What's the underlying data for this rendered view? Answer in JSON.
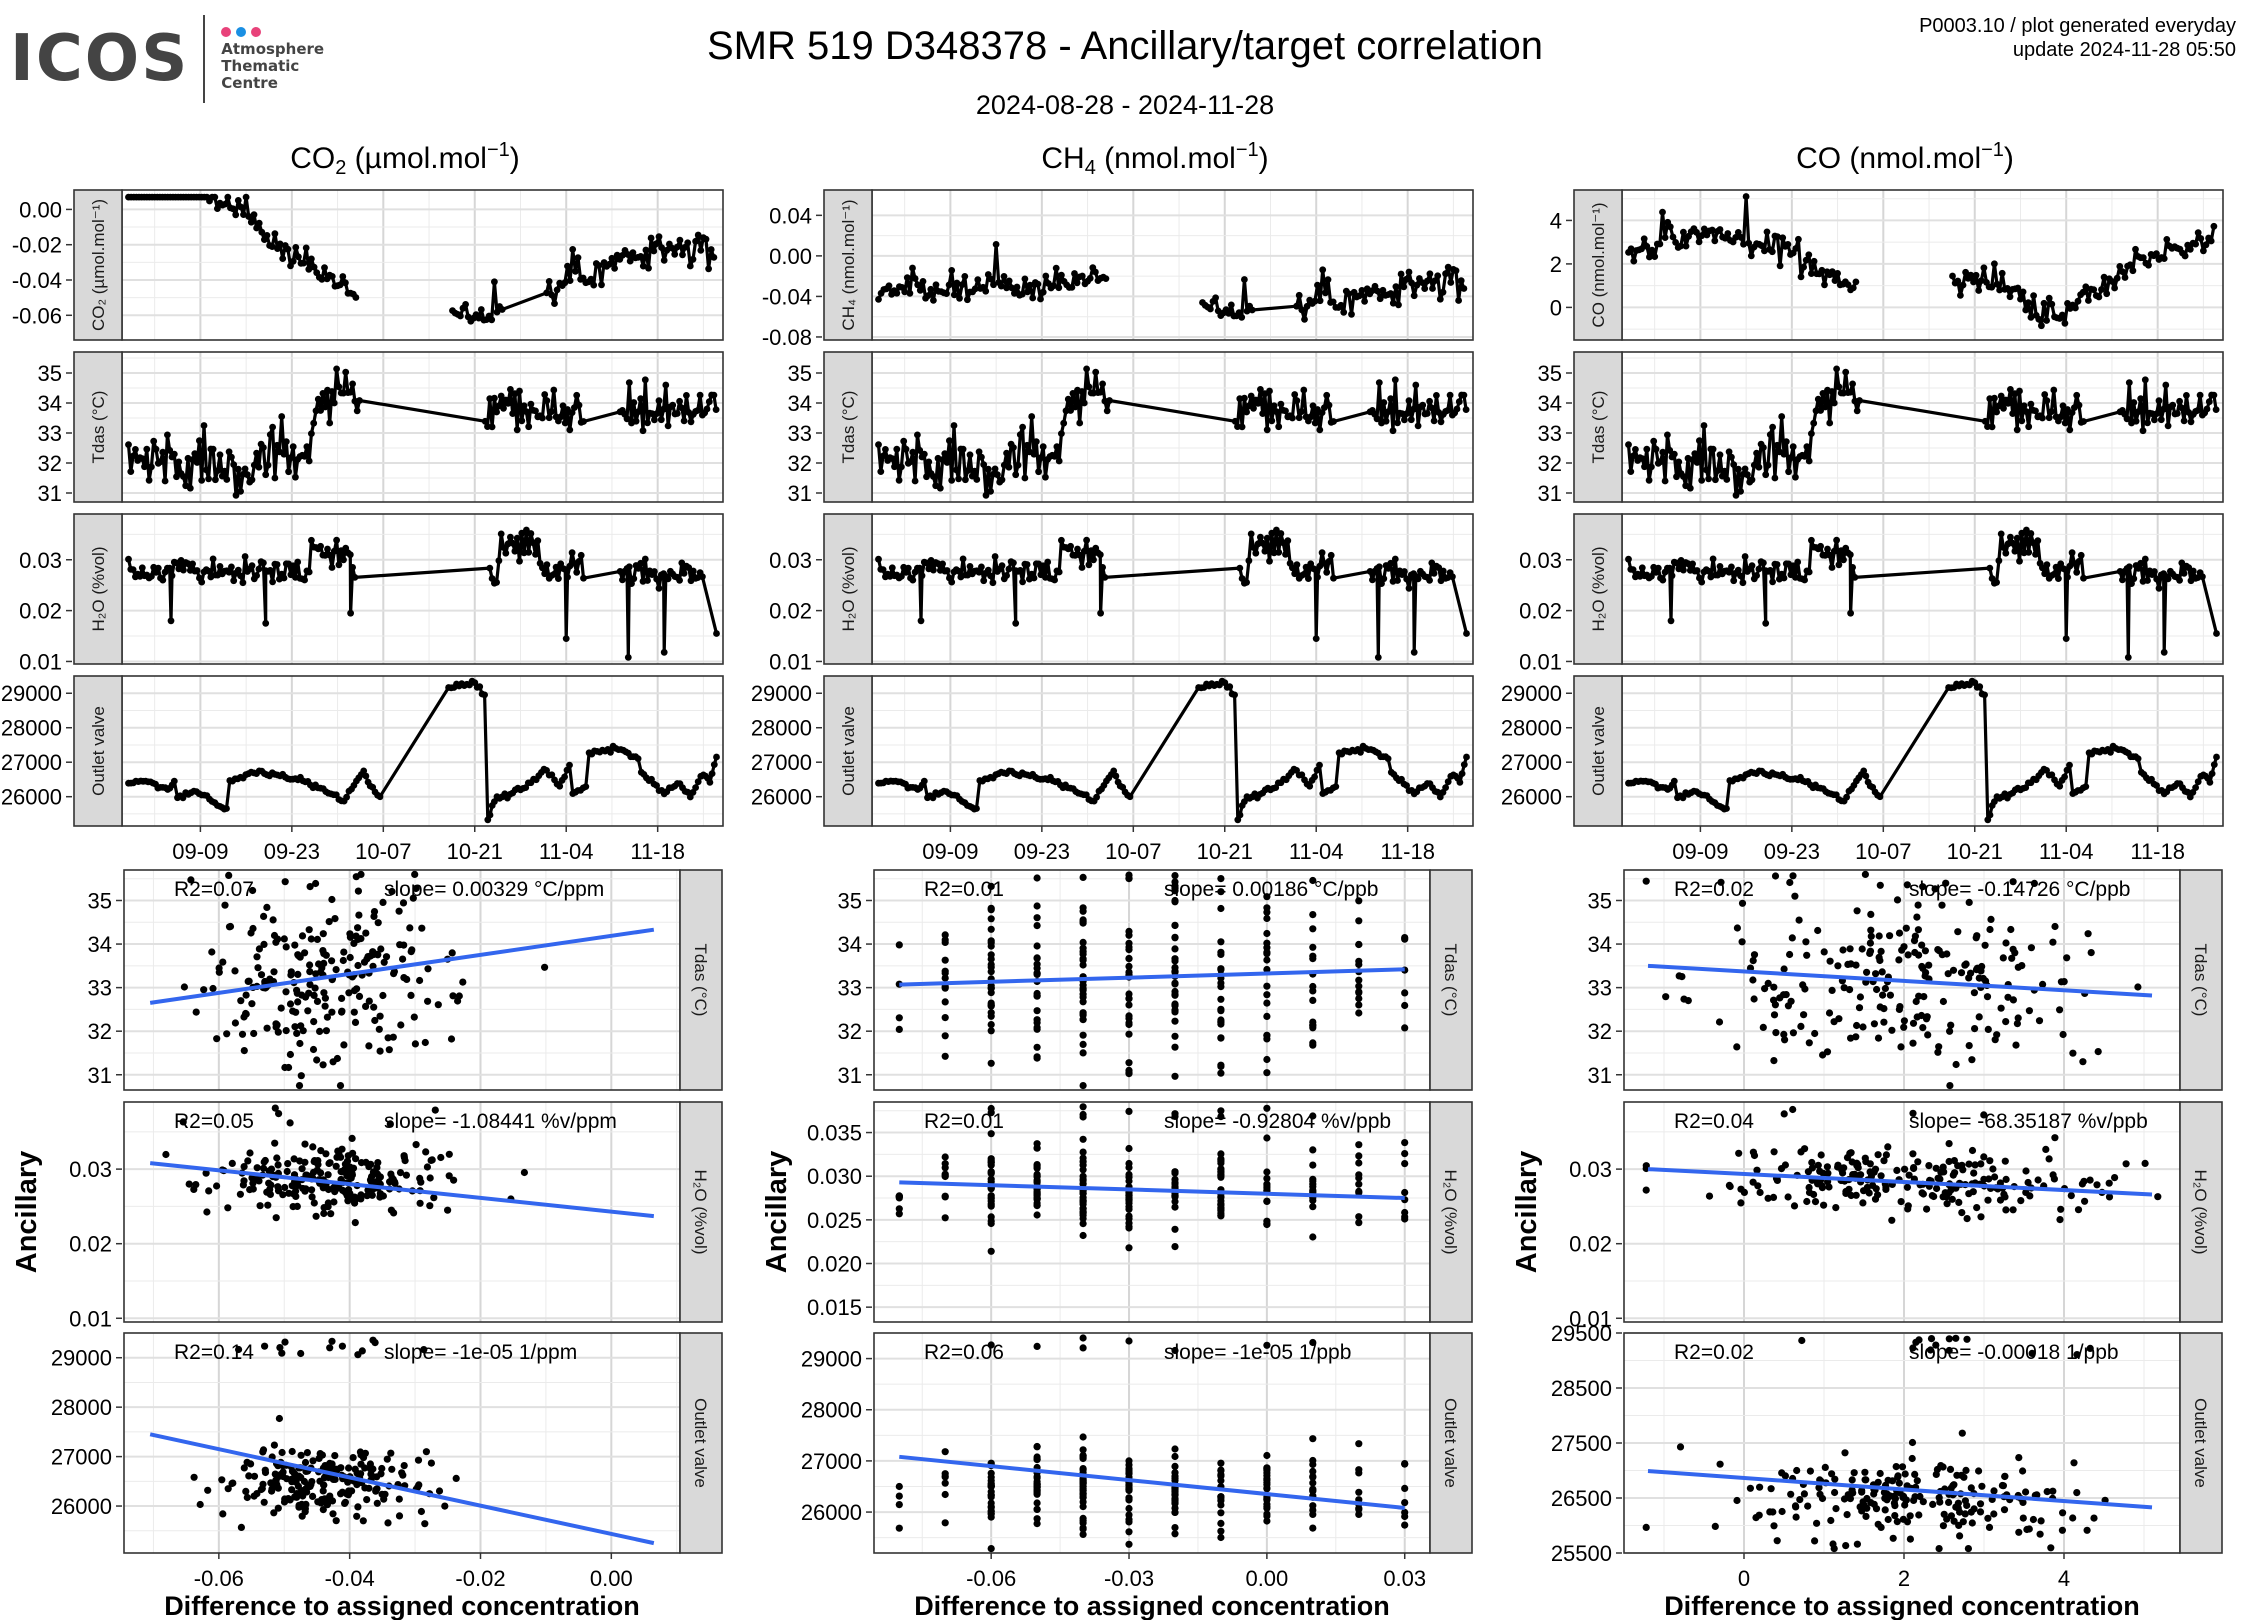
{
  "header": {
    "logo_text": "ICOS",
    "logo_sub": [
      "Atmosphere",
      "Thematic",
      "Centre"
    ],
    "logo_dot_colors": [
      "#e8427a",
      "#1a8fe3",
      "#e8427a"
    ],
    "title": "SMR 519 D348378 - Ancillary/target correlation",
    "subtitle": "2024-08-28 - 2024-11-28",
    "meta_line1": "P0003.10 / plot generated everyday",
    "meta_line2": "update  2024-11-28 05:50"
  },
  "colors": {
    "fit_line": "#3366ee",
    "strip_bg": "#d9d9d9",
    "points": "#000000"
  },
  "chart_data": {
    "type": "line",
    "time_axis": {
      "range": [
        "2024-08-29",
        "2024-11-27"
      ],
      "tick_labels": [
        "09-09",
        "09-23",
        "10-07",
        "10-21",
        "11-04",
        "11-18"
      ]
    },
    "ancillary_axis_label": "Ancillary",
    "difference_axis_label": "Difference to assigned concentration",
    "columns": [
      {
        "gas": "CO2",
        "title_main": "CO",
        "title_sub": "2",
        "title_unit": " (µmol.mol",
        "title_sup": "−1",
        "title_end": ")",
        "timeseries": [
          {
            "strip": "CO₂ (µmol.mol⁻¹)",
            "ylim": [
              -0.074,
              0.011
            ],
            "yticks": [
              0.0,
              -0.02,
              -0.04,
              -0.06
            ],
            "ytick_labels": [
              "0.00",
              "-0.02",
              "-0.04",
              "-0.06"
            ],
            "kind": "target"
          },
          {
            "strip": "Tdas (°C)",
            "ylim": [
              30.7,
              35.7
            ],
            "yticks": [
              31,
              32,
              33,
              34,
              35
            ],
            "ytick_labels": [
              "31",
              "32",
              "33",
              "34",
              "35"
            ],
            "kind": "tdas"
          },
          {
            "strip": "H₂O (%vol)",
            "ylim": [
              0.0095,
              0.039
            ],
            "yticks": [
              0.01,
              0.02,
              0.03
            ],
            "ytick_labels": [
              "0.01",
              "0.02",
              "0.03"
            ],
            "kind": "h2o"
          },
          {
            "strip": "Outlet valve",
            "ylim": [
              25150,
              29500
            ],
            "yticks": [
              26000,
              27000,
              28000,
              29000
            ],
            "ytick_labels": [
              "26000",
              "27000",
              "28000",
              "29000"
            ],
            "kind": "outlet"
          }
        ],
        "target_series": {
          "segments": [
            [
              0,
              0.045
            ],
            [
              35,
              -0.052
            ],
            [
              55,
              -0.06
            ],
            [
              77,
              -0.025
            ],
            [
              92,
              -0.021
            ]
          ],
          "range": [
            -0.072,
            0.007
          ]
        },
        "scatter": {
          "xlim": [
            -0.0745,
            0.0105
          ],
          "xticks": [
            -0.06,
            -0.04,
            -0.02,
            0.0
          ],
          "xtick_labels": [
            "-0.06",
            "-0.04",
            "-0.02",
            "0.00"
          ],
          "panels": [
            {
              "strip": "Tdas (°C)",
              "ylim": [
                30.65,
                35.7
              ],
              "yticks": [
                31,
                32,
                33,
                34,
                35
              ],
              "ytick_labels": [
                "31",
                "32",
                "33",
                "34",
                "35"
              ],
              "r2": "R2=0.07",
              "slope": "slope= 0.00329 °C/ppm",
              "fit": [
                [
                  -0.0705,
                  32.65
                ],
                [
                  0.0065,
                  34.33
                ]
              ],
              "cloud": {
                "xc": -0.043,
                "xs": 0.009,
                "yc": 33.1,
                "ys": 1.0
              }
            },
            {
              "strip": "H₂O (%vol)",
              "ylim": [
                0.0095,
                0.039
              ],
              "yticks": [
                0.01,
                0.02,
                0.03
              ],
              "ytick_labels": [
                "0.01",
                "0.02",
                "0.03"
              ],
              "r2": "R2=0.05",
              "slope": "slope= -1.08441 %v/ppm",
              "fit": [
                [
                  -0.0705,
                  0.0308
                ],
                [
                  0.0065,
                  0.0237
                ]
              ],
              "cloud": {
                "xc": -0.043,
                "xs": 0.009,
                "yc": 0.0285,
                "ys": 0.0022
              }
            },
            {
              "strip": "Outlet valve",
              "ylim": [
                25050,
                29500
              ],
              "yticks": [
                26000,
                27000,
                28000,
                29000
              ],
              "ytick_labels": [
                "26000",
                "27000",
                "28000",
                "29000"
              ],
              "r2": "R2=0.14",
              "slope": "slope= -1e-05 1/ppm",
              "fit": [
                [
                  -0.0705,
                  27450
                ],
                [
                  0.0065,
                  25250
                ]
              ],
              "cloud": {
                "xc": -0.044,
                "xs": 0.008,
                "yc": 26450,
                "ys": 380
              }
            }
          ]
        }
      },
      {
        "gas": "CH4",
        "title_main": "CH",
        "title_sub": "4",
        "title_unit": " (nmol.mol",
        "title_sup": "−1",
        "title_end": ")",
        "timeseries": [
          {
            "strip": "CH₄ (nmol.mol⁻¹)",
            "ylim": [
              -0.083,
              0.065
            ],
            "yticks": [
              0.04,
              0.0,
              -0.04,
              -0.08
            ],
            "ytick_labels": [
              "0.04",
              "0.00",
              "-0.04",
              "-0.08"
            ],
            "kind": "target"
          },
          {
            "strip": "Tdas (°C)",
            "ylim": [
              30.7,
              35.7
            ],
            "yticks": [
              31,
              32,
              33,
              34,
              35
            ],
            "ytick_labels": [
              "31",
              "32",
              "33",
              "34",
              "35"
            ],
            "kind": "tdas"
          },
          {
            "strip": "H₂O (%vol)",
            "ylim": [
              0.0095,
              0.039
            ],
            "yticks": [
              0.01,
              0.02,
              0.03
            ],
            "ytick_labels": [
              "0.01",
              "0.02",
              "0.03"
            ],
            "kind": "h2o"
          },
          {
            "strip": "Outlet valve",
            "ylim": [
              25150,
              29500
            ],
            "yticks": [
              26000,
              27000,
              28000,
              29000
            ],
            "ytick_labels": [
              "26000",
              "27000",
              "28000",
              "29000"
            ],
            "kind": "outlet"
          }
        ],
        "target_series": {
          "segments": [
            [
              0,
              -0.035
            ],
            [
              35,
              -0.025
            ],
            [
              55,
              -0.055
            ],
            [
              77,
              -0.035
            ],
            [
              92,
              -0.02
            ]
          ],
          "range": [
            -0.08,
            0.06
          ]
        },
        "scatter": {
          "xlim": [
            -0.0855,
            0.0355
          ],
          "xticks": [
            -0.06,
            -0.03,
            0.0,
            0.03
          ],
          "xtick_labels": [
            "-0.06",
            "-0.03",
            "0.00",
            "0.03"
          ],
          "discrete_x": [
            -0.08,
            -0.07,
            -0.06,
            -0.05,
            -0.04,
            -0.03,
            -0.02,
            -0.01,
            0.0,
            0.01,
            0.02,
            0.03
          ],
          "panels": [
            {
              "strip": "Tdas (°C)",
              "ylim": [
                30.65,
                35.7
              ],
              "yticks": [
                31,
                32,
                33,
                34,
                35
              ],
              "ytick_labels": [
                "31",
                "32",
                "33",
                "34",
                "35"
              ],
              "r2": "R2=0.01",
              "slope": "slope= 0.00186 °C/ppb",
              "fit": [
                [
                  -0.08,
                  33.07
                ],
                [
                  0.03,
                  33.42
                ]
              ],
              "cloud": {
                "yc": 33.2,
                "ys": 1.0
              }
            },
            {
              "strip": "H₂O (%vol)",
              "ylim": [
                0.0133,
                0.0385
              ],
              "yticks": [
                0.015,
                0.02,
                0.025,
                0.03,
                0.035
              ],
              "ytick_labels": [
                "0.015",
                "0.020",
                "0.025",
                "0.030",
                "0.035"
              ],
              "r2": "R2=0.01",
              "slope": "slope= -0.92804 %v/ppb",
              "fit": [
                [
                  -0.08,
                  0.0293
                ],
                [
                  0.03,
                  0.0275
                ]
              ],
              "cloud": {
                "yc": 0.0285,
                "ys": 0.0022
              }
            },
            {
              "strip": "Outlet valve",
              "ylim": [
                25200,
                29500
              ],
              "yticks": [
                26000,
                27000,
                28000,
                29000
              ],
              "ytick_labels": [
                "26000",
                "27000",
                "28000",
                "29000"
              ],
              "r2": "R2=0.06",
              "slope": "slope= -1e-05 1/ppb",
              "fit": [
                [
                  -0.08,
                  27080
                ],
                [
                  0.03,
                  26080
                ]
              ],
              "cloud": {
                "yc": 26400,
                "ys": 380
              }
            }
          ]
        }
      },
      {
        "gas": "CO",
        "title_main": "CO",
        "title_sub": "",
        "title_unit": " (nmol.mol",
        "title_sup": "−1",
        "title_end": ")",
        "timeseries": [
          {
            "strip": "CO (nmol.mol⁻¹)",
            "ylim": [
              -1.5,
              5.4
            ],
            "yticks": [
              0,
              2,
              4
            ],
            "ytick_labels": [
              "0",
              "2",
              "4"
            ],
            "kind": "target"
          },
          {
            "strip": "Tdas (°C)",
            "ylim": [
              30.7,
              35.7
            ],
            "yticks": [
              31,
              32,
              33,
              34,
              35
            ],
            "ytick_labels": [
              "31",
              "32",
              "33",
              "34",
              "35"
            ],
            "kind": "tdas"
          },
          {
            "strip": "H₂O (%vol)",
            "ylim": [
              0.0095,
              0.039
            ],
            "yticks": [
              0.01,
              0.02,
              0.03
            ],
            "ytick_labels": [
              "0.01",
              "0.02",
              "0.03"
            ],
            "kind": "h2o"
          },
          {
            "strip": "Outlet valve",
            "ylim": [
              25150,
              29500
            ],
            "yticks": [
              26000,
              27000,
              28000,
              29000
            ],
            "ytick_labels": [
              "26000",
              "27000",
              "28000",
              "29000"
            ],
            "kind": "outlet"
          }
        ],
        "target_series": {
          "segments": [
            [
              0,
              2.2
            ],
            [
              12,
              3.5
            ],
            [
              20,
              3.2
            ],
            [
              35,
              0.7
            ],
            [
              55,
              1.2
            ],
            [
              65,
              -0.5
            ],
            [
              77,
              2.0
            ],
            [
              92,
              3.5
            ]
          ],
          "range": [
            -1.2,
            5.1
          ]
        },
        "scatter": {
          "xlim": [
            -1.5,
            5.45
          ],
          "xticks": [
            0,
            2,
            4
          ],
          "xtick_labels": [
            "0",
            "2",
            "4"
          ],
          "panels": [
            {
              "strip": "Tdas (°C)",
              "ylim": [
                30.65,
                35.7
              ],
              "yticks": [
                31,
                32,
                33,
                34,
                35
              ],
              "ytick_labels": [
                "31",
                "32",
                "33",
                "34",
                "35"
              ],
              "r2": "R2=0.02",
              "slope": "slope= -0.14726 °C/ppb",
              "fit": [
                [
                  -1.2,
                  33.5
                ],
                [
                  5.1,
                  32.82
                ]
              ],
              "cloud": {
                "xc": 1.9,
                "xs": 1.2,
                "yc": 33.1,
                "ys": 1.0
              }
            },
            {
              "strip": "H₂O (%vol)",
              "ylim": [
                0.0095,
                0.039
              ],
              "yticks": [
                0.01,
                0.02,
                0.03
              ],
              "ytick_labels": [
                "0.01",
                "0.02",
                "0.03"
              ],
              "r2": "R2=0.04",
              "slope": "slope= -68.35187 %v/ppb",
              "fit": [
                [
                  -1.2,
                  0.03
                ],
                [
                  5.1,
                  0.0266
                ]
              ],
              "cloud": {
                "xc": 2.0,
                "xs": 1.2,
                "yc": 0.0285,
                "ys": 0.002
              }
            },
            {
              "strip": "Outlet valve",
              "ylim": [
                25500,
                29500
              ],
              "yticks": [
                25500,
                26500,
                27500,
                28500,
                29500
              ],
              "ytick_labels": [
                "25500",
                "26500",
                "27500",
                "28500",
                "29500"
              ],
              "r2": "R2=0.02",
              "slope": "slope= -0.00018 1/ppb",
              "fit": [
                [
                  -1.2,
                  26990
                ],
                [
                  5.1,
                  26330
                ]
              ],
              "cloud": {
                "xc": 2.1,
                "xs": 1.1,
                "yc": 26500,
                "ys": 380
              }
            }
          ]
        }
      }
    ]
  }
}
